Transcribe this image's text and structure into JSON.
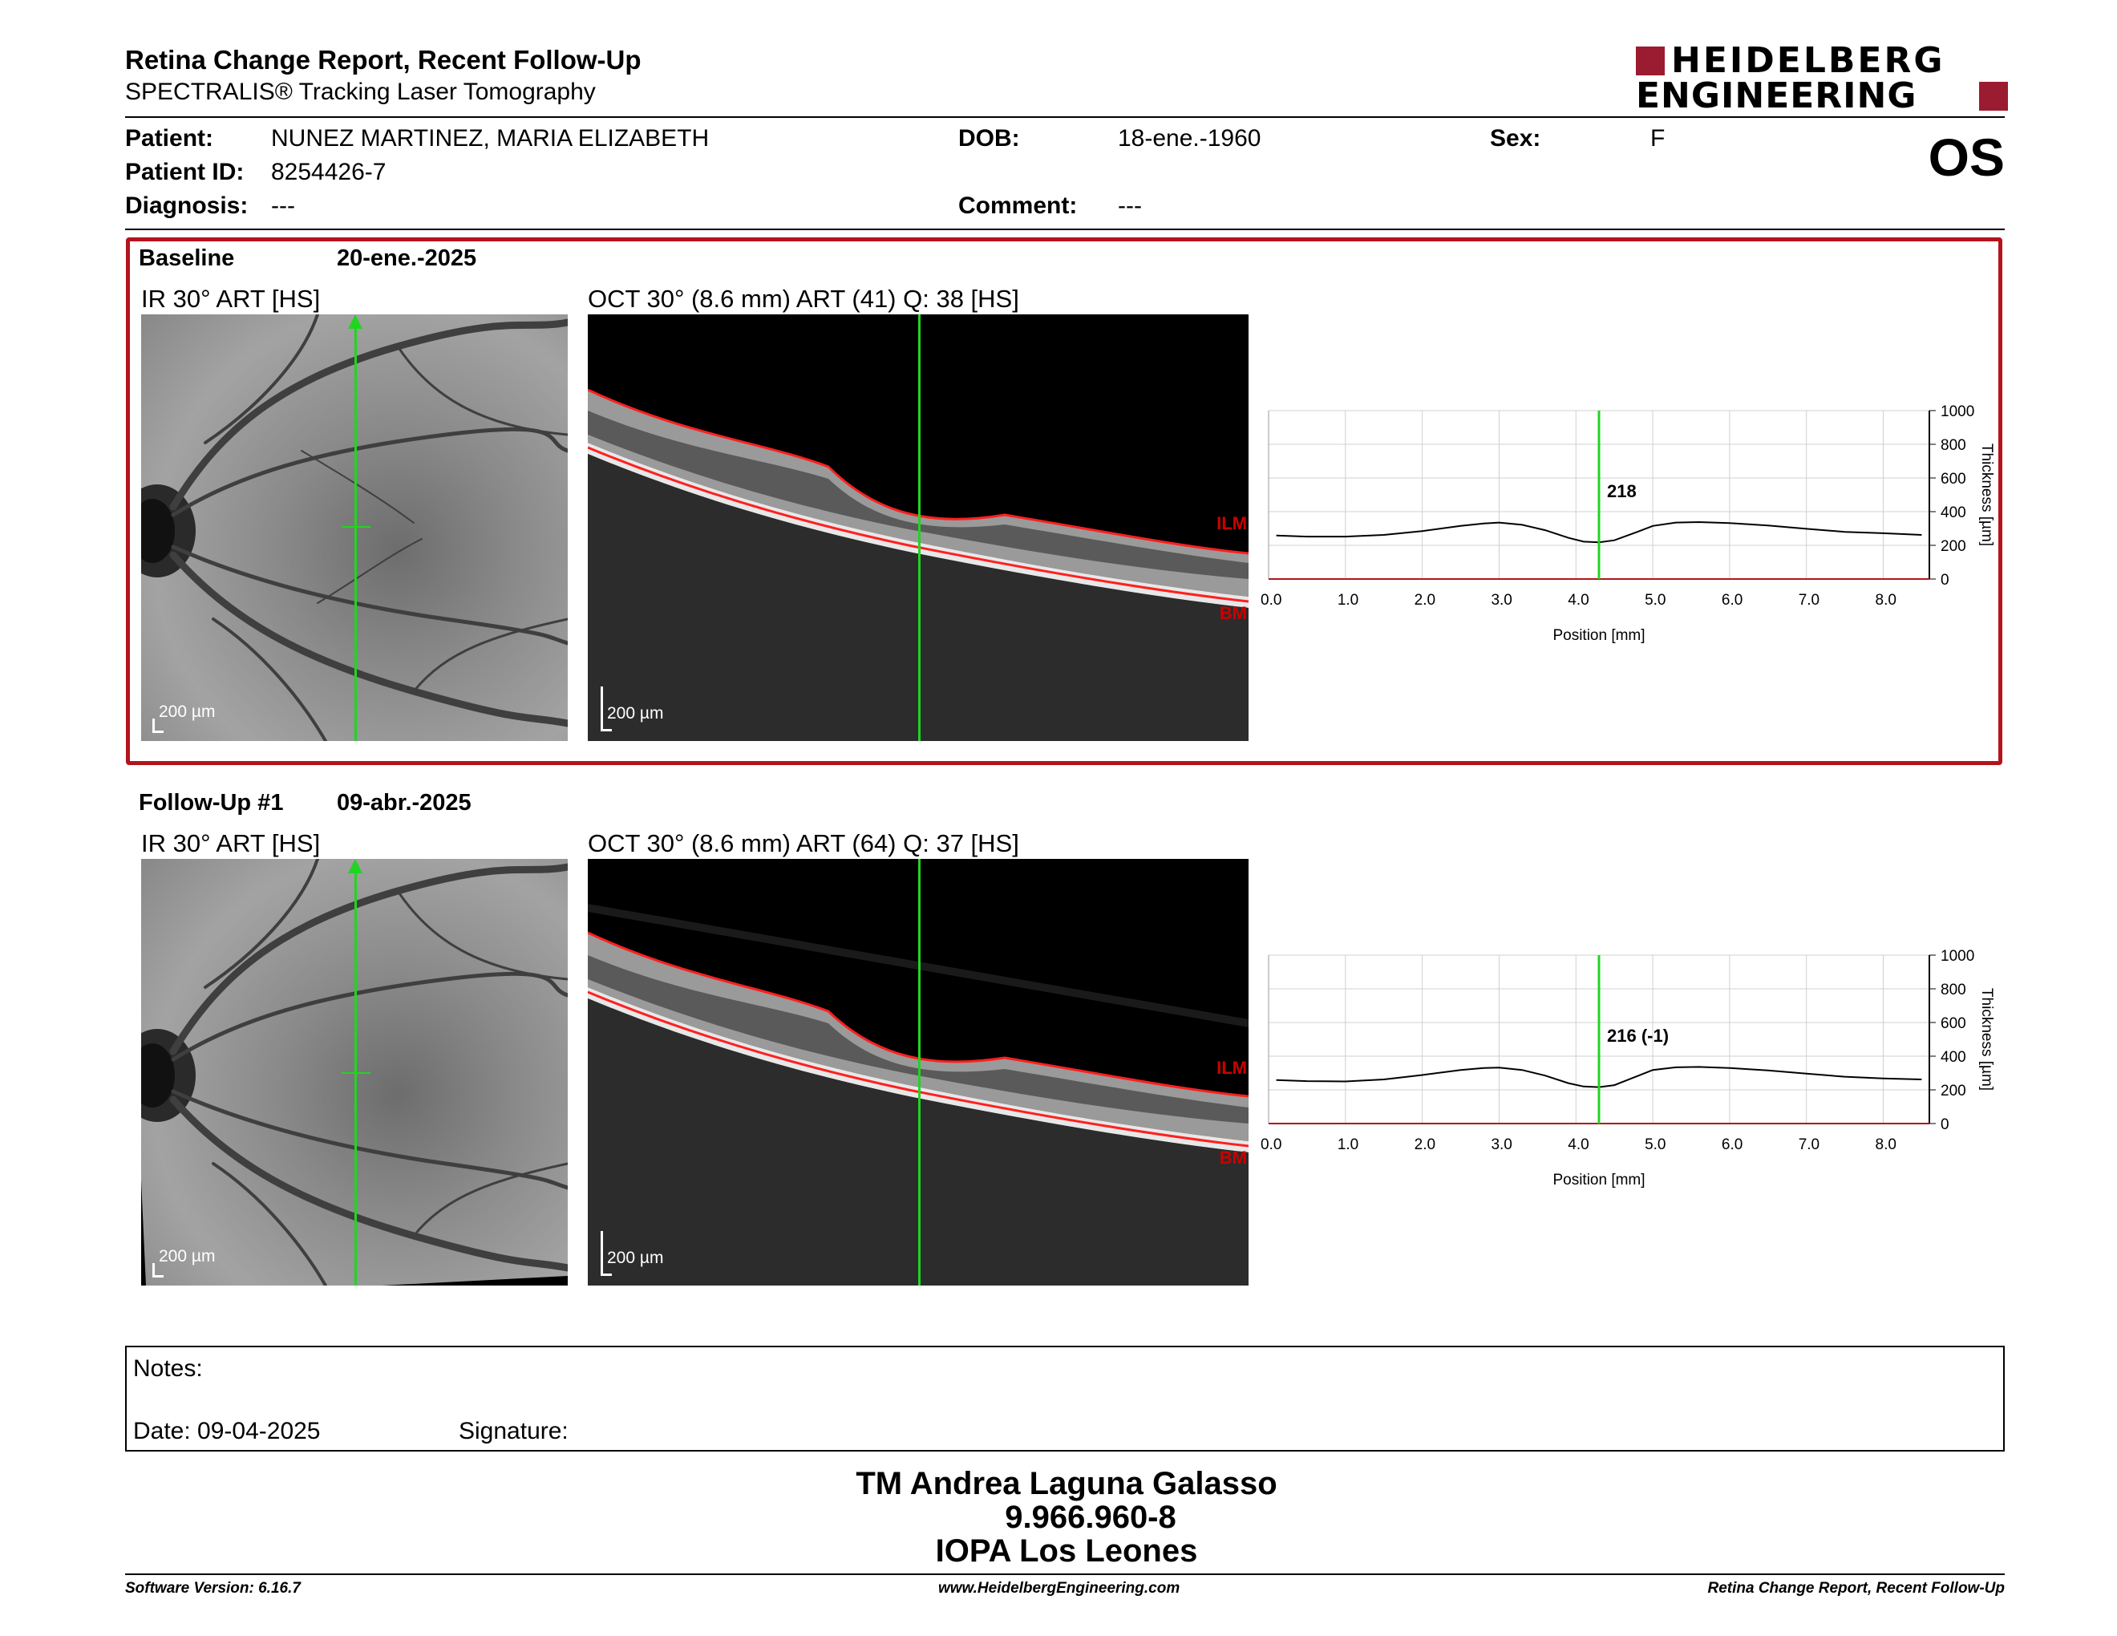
{
  "header": {
    "title": "Retina Change Report, Recent Follow-Up",
    "subtitle": "SPECTRALIS® Tracking Laser Tomography",
    "logo_line1": "HEIDELBERG",
    "logo_line2": "ENGINEERING",
    "eye": "OS"
  },
  "patient": {
    "patient_label": "Patient:",
    "patient_value": "NUNEZ MARTINEZ, MARIA ELIZABETH",
    "dob_label": "DOB:",
    "dob_value": "18-ene.-1960",
    "sex_label": "Sex:",
    "sex_value": "F",
    "id_label": "Patient ID:",
    "id_value": "8254426-7",
    "diagnosis_label": "Diagnosis:",
    "diagnosis_value": "---",
    "comment_label": "Comment:",
    "comment_value": "---"
  },
  "exams": [
    {
      "label": "Baseline",
      "date": "20-ene.-2025",
      "ir_title": "IR 30° ART [HS]",
      "oct_title": "OCT 30° (8.6 mm) ART (41) Q: 38 [HS]",
      "scale": "200 µm",
      "ilm": "ILM",
      "bm": "BM",
      "cursor_value": "218"
    },
    {
      "label": "Follow-Up #1",
      "date": "09-abr.-2025",
      "ir_title": "IR 30° ART [HS]",
      "oct_title": "OCT 30° (8.6 mm) ART (64) Q: 37 [HS]",
      "scale": "200 µm",
      "ilm": "ILM",
      "bm": "BM",
      "cursor_value": "216 (-1)"
    }
  ],
  "chart_data": [
    {
      "type": "line",
      "xlabel": "Position [mm]",
      "ylabel": "Thickness [µm]",
      "xlim": [
        0,
        8.6
      ],
      "ylim": [
        0,
        1000
      ],
      "x_ticks": [
        "0.0",
        "1.0",
        "2.0",
        "3.0",
        "4.0",
        "5.0",
        "6.0",
        "7.0",
        "8.0"
      ],
      "y_ticks": [
        "0",
        "200",
        "400",
        "600",
        "800",
        "1000"
      ],
      "cursor_x": 4.3,
      "cursor_label": "218",
      "grid": true,
      "x": [
        0.1,
        0.5,
        1.0,
        1.5,
        2.0,
        2.5,
        2.8,
        3.0,
        3.3,
        3.6,
        3.9,
        4.1,
        4.3,
        4.5,
        4.8,
        5.0,
        5.3,
        5.6,
        6.0,
        6.5,
        7.0,
        7.5,
        8.0,
        8.5
      ],
      "y": [
        258,
        252,
        252,
        262,
        285,
        315,
        330,
        335,
        322,
        290,
        245,
        222,
        218,
        230,
        280,
        315,
        335,
        338,
        332,
        318,
        298,
        280,
        272,
        262
      ]
    },
    {
      "type": "line",
      "xlabel": "Position [mm]",
      "ylabel": "Thickness [µm]",
      "xlim": [
        0,
        8.6
      ],
      "ylim": [
        0,
        1000
      ],
      "x_ticks": [
        "0.0",
        "1.0",
        "2.0",
        "3.0",
        "4.0",
        "5.0",
        "6.0",
        "7.0",
        "8.0"
      ],
      "y_ticks": [
        "0",
        "200",
        "400",
        "600",
        "800",
        "1000"
      ],
      "cursor_x": 4.3,
      "cursor_label": "216 (-1)",
      "grid": true,
      "x": [
        0.1,
        0.5,
        1.0,
        1.5,
        2.0,
        2.5,
        2.8,
        3.0,
        3.3,
        3.6,
        3.9,
        4.1,
        4.3,
        4.5,
        4.8,
        5.0,
        5.3,
        5.6,
        6.0,
        6.5,
        7.0,
        7.5,
        8.0,
        8.5
      ],
      "y": [
        258,
        252,
        250,
        262,
        288,
        318,
        330,
        332,
        318,
        285,
        240,
        220,
        216,
        228,
        282,
        318,
        334,
        336,
        330,
        315,
        296,
        278,
        268,
        262
      ]
    }
  ],
  "notes": {
    "label": "Notes:",
    "date_label": "Date: 09-04-2025",
    "signature_label": "Signature:"
  },
  "signer": {
    "name": "TM Andrea Laguna Galasso",
    "id": "9.966.960-8",
    "org": "IOPA Los Leones"
  },
  "footer": {
    "left": "Software Version: 6.16.7",
    "center": "www.HeidelbergEngineering.com",
    "right": "Retina Change Report, Recent Follow-Up"
  }
}
